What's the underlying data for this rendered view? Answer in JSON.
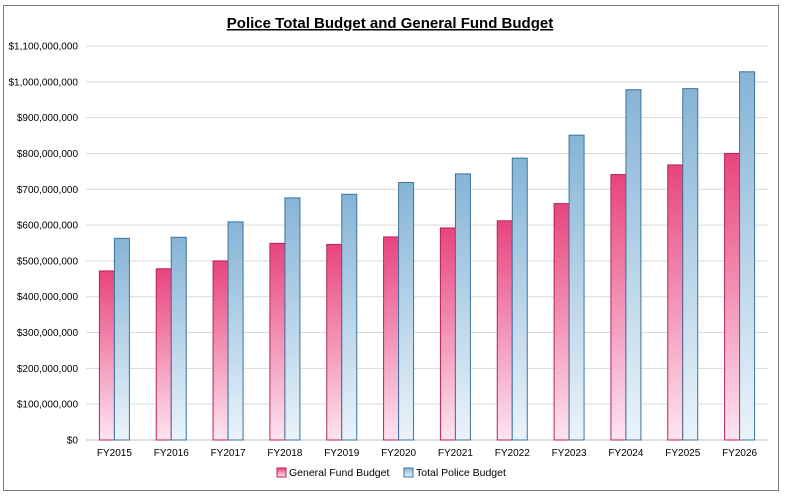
{
  "chart_data": {
    "type": "bar",
    "title": "Police Total Budget and General Fund Budget",
    "xlabel": "",
    "ylabel": "",
    "ylim": [
      0,
      1100000000
    ],
    "yticks": [
      0,
      100000000,
      200000000,
      300000000,
      400000000,
      500000000,
      600000000,
      700000000,
      800000000,
      900000000,
      1000000000,
      1100000000
    ],
    "ytick_labels": [
      "$0",
      "$100,000,000",
      "$200,000,000",
      "$300,000,000",
      "$400,000,000",
      "$500,000,000",
      "$600,000,000",
      "$700,000,000",
      "$800,000,000",
      "$900,000,000",
      "$1,000,000,000",
      "$1,100,000,000"
    ],
    "grid": true,
    "legend_position": "bottom",
    "categories": [
      "FY2015",
      "FY2016",
      "FY2017",
      "FY2018",
      "FY2019",
      "FY2020",
      "FY2021",
      "FY2022",
      "FY2023",
      "FY2024",
      "FY2025",
      "FY2026"
    ],
    "series": [
      {
        "name": "General Fund Budget",
        "color_top": "#e8447e",
        "color_bottom": "#fde4f0",
        "border": "#b5245a",
        "values": [
          472000000,
          478000000,
          500000000,
          549000000,
          546000000,
          567000000,
          592000000,
          612000000,
          660000000,
          741000000,
          768000000,
          800000000
        ]
      },
      {
        "name": "Total Police Budget",
        "color_top": "#86b4d6",
        "color_bottom": "#eaf3fa",
        "border": "#3f739c",
        "values": [
          563000000,
          566000000,
          609000000,
          676000000,
          686000000,
          719000000,
          743000000,
          787000000,
          851000000,
          978000000,
          981000000,
          1028000000
        ]
      }
    ]
  }
}
